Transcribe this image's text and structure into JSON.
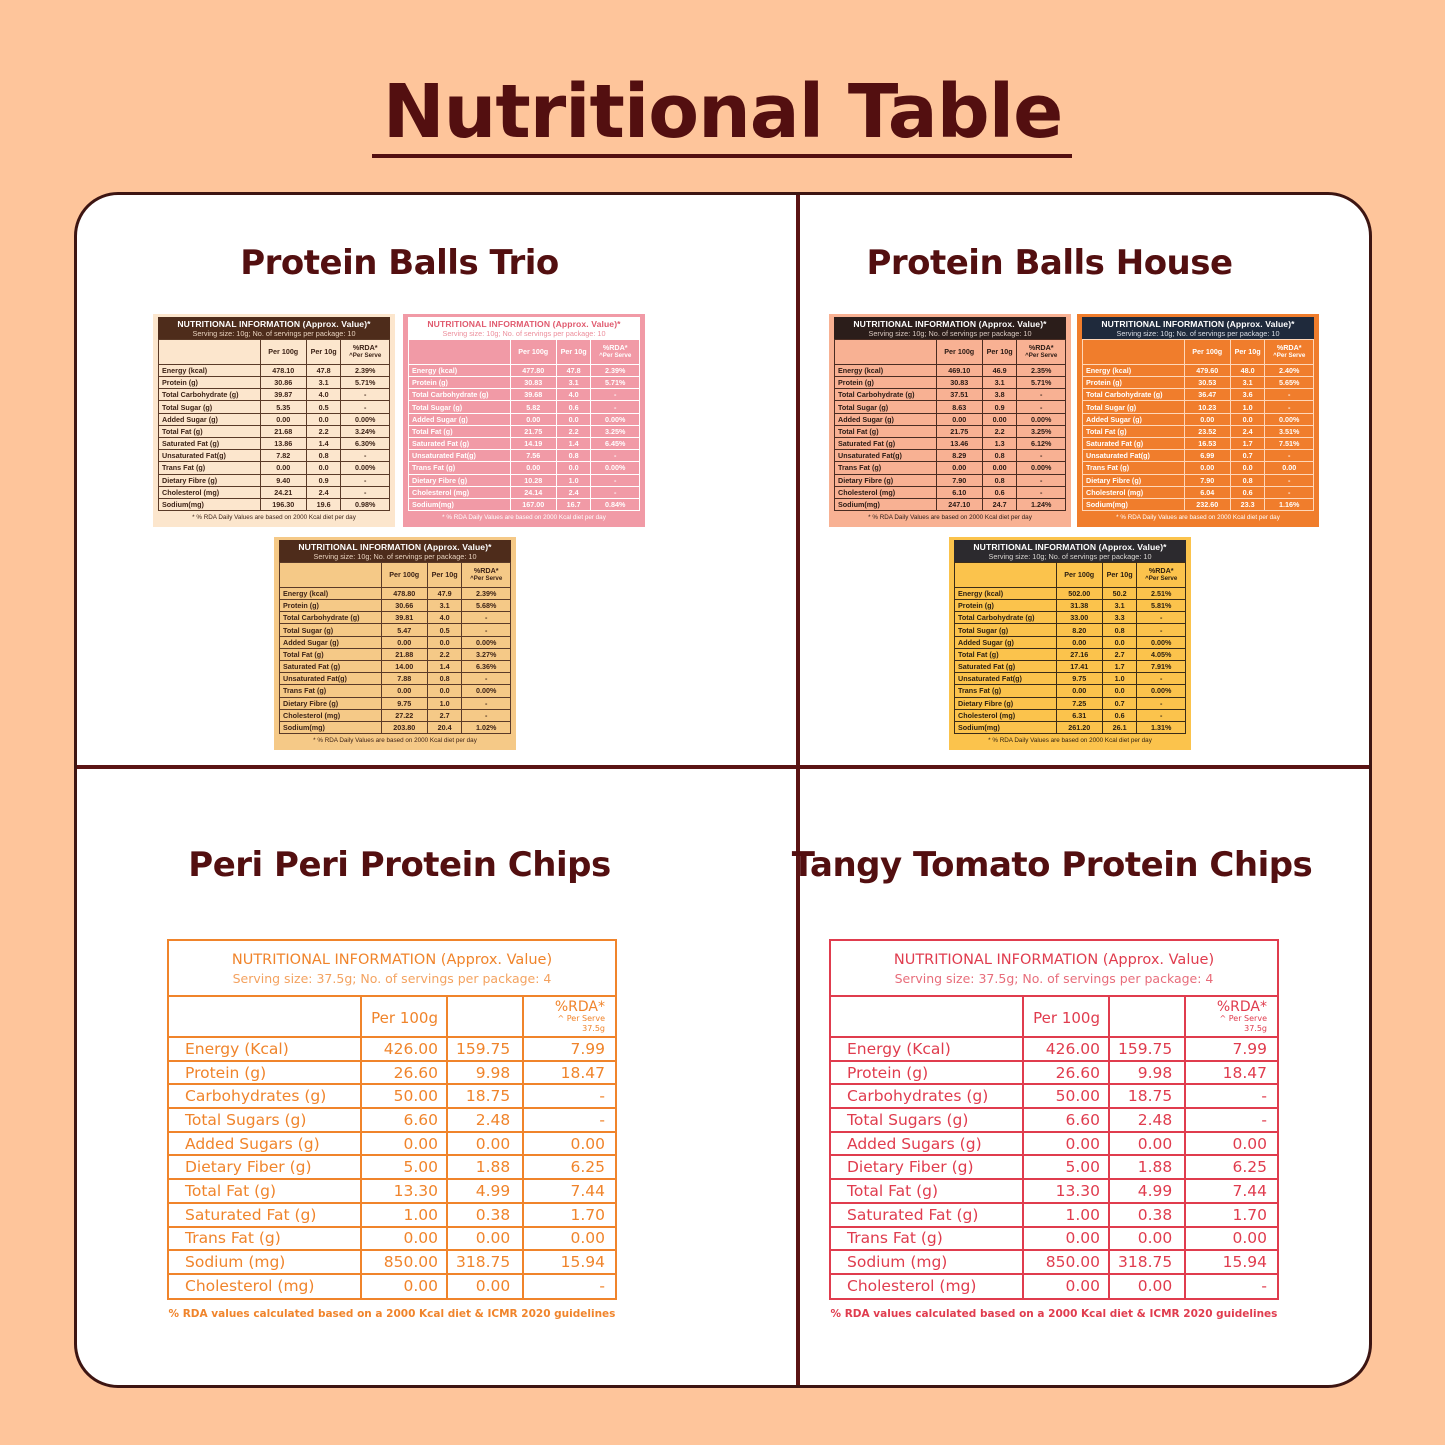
{
  "page": {
    "title": "Nutritional Table",
    "colors": {
      "background": "#fec59b",
      "title": "#530f10",
      "panel_border": "#3d1512",
      "divider": "#5b1414"
    }
  },
  "common": {
    "small_header": "NUTRITIONAL INFORMATION (Approx. Value)*",
    "small_serving": "Serving size: 10g; No. of servings per package: 10",
    "small_col_100g": "Per 100g",
    "small_col_10g": "Per 10g",
    "small_col_rda": "%RDA*",
    "small_col_rda_sub": "^Per Serve",
    "small_footer": "* % RDA Daily Values are based on 2000 Kcal diet per day",
    "small_labels": [
      "Energy (kcal)",
      "Protein (g)",
      "Total Carbohydrate (g)",
      "Total Sugar (g)",
      "Added Sugar (g)",
      "Total Fat (g)",
      "Saturated Fat (g)",
      "Unsaturated Fat(g)",
      "Trans Fat (g)",
      "Dietary Fibre (g)",
      "Cholesterol (mg)",
      "Sodium(mg)"
    ],
    "chips_header": "NUTRITIONAL INFORMATION (Approx. Value)",
    "chips_serving": "Serving size: 37.5g; No. of servings per package: 4",
    "chips_col_100g": "Per 100g",
    "chips_col_serve": "",
    "chips_col_rda": "%RDA*",
    "chips_col_rda_sub": "^ Per Serve 37.5g",
    "chips_footer": "% RDA values calculated based on a 2000 Kcal diet & ICMR 2020 guidelines",
    "chips_labels": [
      "Energy (Kcal)",
      "Protein (g)",
      "Carbohydrates (g)",
      "Total Sugars (g)",
      "Added Sugars (g)",
      "Dietary Fiber (g)",
      "Total Fat (g)",
      "Saturated Fat (g)",
      "Trans Fat (g)",
      "Sodium (mg)",
      "Cholesterol (mg)"
    ]
  },
  "sections": {
    "trio": {
      "title": "Protein Balls Trio",
      "cards": [
        {
          "theme": "brown",
          "rows": [
            [
              "478.10",
              "47.8",
              "2.39%"
            ],
            [
              "30.86",
              "3.1",
              "5.71%"
            ],
            [
              "39.87",
              "4.0",
              "-"
            ],
            [
              "5.35",
              "0.5",
              "-"
            ],
            [
              "0.00",
              "0.0",
              "0.00%"
            ],
            [
              "21.68",
              "2.2",
              "3.24%"
            ],
            [
              "13.86",
              "1.4",
              "6.30%"
            ],
            [
              "7.82",
              "0.8",
              "-"
            ],
            [
              "0.00",
              "0.0",
              "0.00%"
            ],
            [
              "9.40",
              "0.9",
              "-"
            ],
            [
              "24.21",
              "2.4",
              "-"
            ],
            [
              "196.30",
              "19.6",
              "0.98%"
            ]
          ]
        },
        {
          "theme": "pink",
          "rows": [
            [
              "477.80",
              "47.8",
              "2.39%"
            ],
            [
              "30.83",
              "3.1",
              "5.71%"
            ],
            [
              "39.68",
              "4.0",
              "-"
            ],
            [
              "5.82",
              "0.6",
              "-"
            ],
            [
              "0.00",
              "0.0",
              "0.00%"
            ],
            [
              "21.75",
              "2.2",
              "3.25%"
            ],
            [
              "14.19",
              "1.4",
              "6.45%"
            ],
            [
              "7.56",
              "0.8",
              "-"
            ],
            [
              "0.00",
              "0.0",
              "0.00%"
            ],
            [
              "10.28",
              "1.0",
              "-"
            ],
            [
              "24.14",
              "2.4",
              "-"
            ],
            [
              "167.00",
              "16.7",
              "0.84%"
            ]
          ]
        },
        {
          "theme": "gold",
          "rows": [
            [
              "478.80",
              "47.9",
              "2.39%"
            ],
            [
              "30.66",
              "3.1",
              "5.68%"
            ],
            [
              "39.81",
              "4.0",
              "-"
            ],
            [
              "5.47",
              "0.5",
              "-"
            ],
            [
              "0.00",
              "0.0",
              "0.00%"
            ],
            [
              "21.88",
              "2.2",
              "3.27%"
            ],
            [
              "14.00",
              "1.4",
              "6.36%"
            ],
            [
              "7.88",
              "0.8",
              "-"
            ],
            [
              "0.00",
              "0.0",
              "0.00%"
            ],
            [
              "9.75",
              "1.0",
              "-"
            ],
            [
              "27.22",
              "2.7",
              "-"
            ],
            [
              "203.80",
              "20.4",
              "1.02%"
            ]
          ]
        }
      ]
    },
    "house": {
      "title": "Protein Balls House",
      "cards": [
        {
          "theme": "salmon",
          "rows": [
            [
              "469.10",
              "46.9",
              "2.35%"
            ],
            [
              "30.83",
              "3.1",
              "5.71%"
            ],
            [
              "37.51",
              "3.8",
              "-"
            ],
            [
              "8.63",
              "0.9",
              "-"
            ],
            [
              "0.00",
              "0.00",
              "0.00%"
            ],
            [
              "21.75",
              "2.2",
              "3.25%"
            ],
            [
              "13.46",
              "1.3",
              "6.12%"
            ],
            [
              "8.29",
              "0.8",
              "-"
            ],
            [
              "0.00",
              "0.00",
              "0.00%"
            ],
            [
              "7.90",
              "0.8",
              "-"
            ],
            [
              "6.10",
              "0.6",
              "-"
            ],
            [
              "247.10",
              "24.7",
              "1.24%"
            ]
          ]
        },
        {
          "theme": "orange",
          "rows": [
            [
              "479.60",
              "48.0",
              "2.40%"
            ],
            [
              "30.53",
              "3.1",
              "5.65%"
            ],
            [
              "36.47",
              "3.6",
              "-"
            ],
            [
              "10.23",
              "1.0",
              "-"
            ],
            [
              "0.00",
              "0.0",
              "0.00%"
            ],
            [
              "23.52",
              "2.4",
              "3.51%"
            ],
            [
              "16.53",
              "1.7",
              "7.51%"
            ],
            [
              "6.99",
              "0.7",
              "-"
            ],
            [
              "0.00",
              "0.0",
              "0.00"
            ],
            [
              "7.90",
              "0.8",
              "-"
            ],
            [
              "6.04",
              "0.6",
              "-"
            ],
            [
              "232.60",
              "23.3",
              "1.16%"
            ]
          ]
        },
        {
          "theme": "yellow",
          "rows": [
            [
              "502.00",
              "50.2",
              "2.51%"
            ],
            [
              "31.38",
              "3.1",
              "5.81%"
            ],
            [
              "33.00",
              "3.3",
              "-"
            ],
            [
              "8.20",
              "0.8",
              "-"
            ],
            [
              "0.00",
              "0.0",
              "0.00%"
            ],
            [
              "27.16",
              "2.7",
              "4.05%"
            ],
            [
              "17.41",
              "1.7",
              "7.91%"
            ],
            [
              "9.75",
              "1.0",
              "-"
            ],
            [
              "0.00",
              "0.0",
              "0.00%"
            ],
            [
              "7.25",
              "0.7",
              "-"
            ],
            [
              "6.31",
              "0.6",
              "-"
            ],
            [
              "261.20",
              "26.1",
              "1.31%"
            ]
          ]
        }
      ]
    },
    "peri": {
      "title": "Peri Peri Protein Chips",
      "accent": "#f0842b",
      "rows": [
        [
          "426.00",
          "159.75",
          "7.99"
        ],
        [
          "26.60",
          "9.98",
          "18.47"
        ],
        [
          "50.00",
          "18.75",
          "-"
        ],
        [
          "6.60",
          "2.48",
          "-"
        ],
        [
          "0.00",
          "0.00",
          "0.00"
        ],
        [
          "5.00",
          "1.88",
          "6.25"
        ],
        [
          "13.30",
          "4.99",
          "7.44"
        ],
        [
          "1.00",
          "0.38",
          "1.70"
        ],
        [
          "0.00",
          "0.00",
          "0.00"
        ],
        [
          "850.00",
          "318.75",
          "15.94"
        ],
        [
          "0.00",
          "0.00",
          "-"
        ]
      ]
    },
    "tomato": {
      "title": "Tangy Tomato Protein Chips",
      "accent": "#e03c4e",
      "rows": [
        [
          "426.00",
          "159.75",
          "7.99"
        ],
        [
          "26.60",
          "9.98",
          "18.47"
        ],
        [
          "50.00",
          "18.75",
          "-"
        ],
        [
          "6.60",
          "2.48",
          "-"
        ],
        [
          "0.00",
          "0.00",
          "0.00"
        ],
        [
          "5.00",
          "1.88",
          "6.25"
        ],
        [
          "13.30",
          "4.99",
          "7.44"
        ],
        [
          "1.00",
          "0.38",
          "1.70"
        ],
        [
          "0.00",
          "0.00",
          "0.00"
        ],
        [
          "850.00",
          "318.75",
          "15.94"
        ],
        [
          "0.00",
          "0.00",
          "-"
        ]
      ]
    }
  }
}
